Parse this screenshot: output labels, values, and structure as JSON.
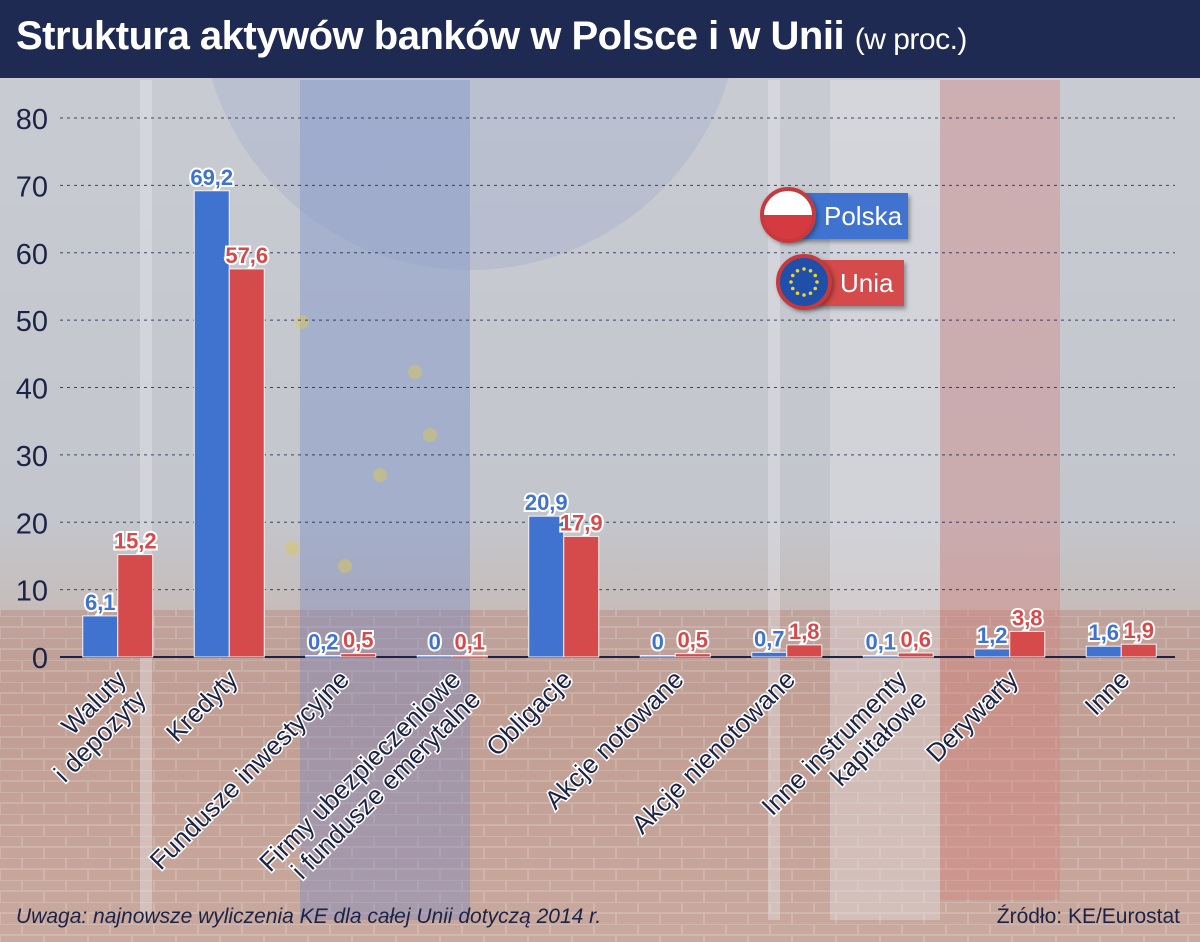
{
  "title": "Struktura aktywów banków w Polsce i w Unii",
  "title_suffix": "(w proc.)",
  "legend": [
    {
      "label": "Polska",
      "color": "#3f73cf"
    },
    {
      "label": "Unia",
      "color": "#d54a4a"
    }
  ],
  "note": "Uwaga: najnowsze wyliczenia KE dla całej Unii dotyczą 2014 r.",
  "source": "Źródło: KE/Eurostat",
  "chart_data": {
    "type": "bar",
    "categories": [
      "Waluty\ni depozyty",
      "Kredyty",
      "Fundusze inwestycyjne",
      "Firmy ubezpieczeniowe\ni fundusze emerytalne",
      "Obligacje",
      "Akcje notowane",
      "Akcje nienotowane",
      "Inne instrumenty\nkapitałowe",
      "Derywarty",
      "Inne"
    ],
    "series": [
      {
        "name": "Polska",
        "color": "#3f73cf",
        "values": [
          6.1,
          69.2,
          0.2,
          0,
          20.9,
          0,
          0.7,
          0.1,
          1.2,
          1.6
        ],
        "labels": [
          "6,1",
          "69,2",
          "0,2",
          "0",
          "20,9",
          "0",
          "0,7",
          "0,1",
          "1,2",
          "1,6"
        ]
      },
      {
        "name": "Unia",
        "color": "#d54a4a",
        "values": [
          15.2,
          57.6,
          0.5,
          0.1,
          17.9,
          0.5,
          1.8,
          0.6,
          3.8,
          1.9
        ],
        "labels": [
          "15,2",
          "57,6",
          "0,5",
          "0,1",
          "17,9",
          "0,5",
          "1,8",
          "0,6",
          "3,8",
          "1,9"
        ]
      }
    ],
    "yticks": [
      0,
      10,
      20,
      30,
      40,
      50,
      60,
      70,
      80
    ],
    "ylim": [
      0,
      80
    ],
    "grid": true,
    "legend_position": "top-right"
  }
}
